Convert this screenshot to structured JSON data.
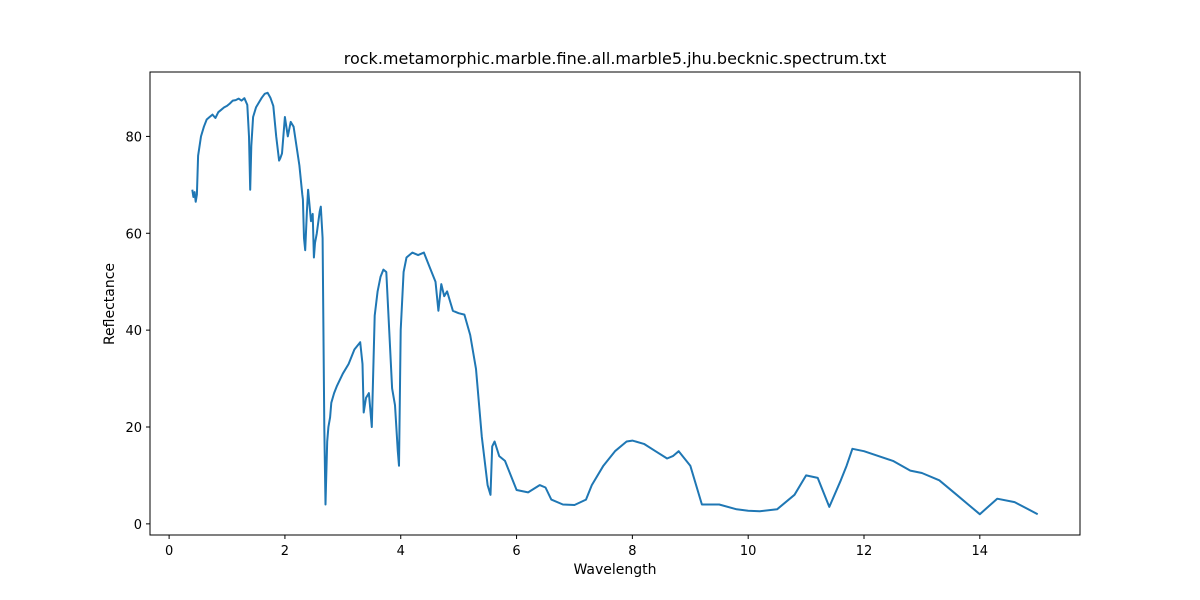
{
  "chart_data": {
    "type": "line",
    "title": "rock.metamorphic.marble.fine.all.marble5.jhu.becknic.spectrum.txt",
    "xlabel": "Wavelength",
    "ylabel": "Reflectance",
    "xlim": [
      -0.33,
      15.73
    ],
    "ylim": [
      -2.3,
      93.3
    ],
    "xticks": [
      0,
      2,
      4,
      6,
      8,
      10,
      12,
      14
    ],
    "yticks": [
      0,
      20,
      40,
      60,
      80
    ],
    "grid": false,
    "series": [
      {
        "color": "#1f77b4",
        "x": [
          0.4,
          0.42,
          0.44,
          0.46,
          0.48,
          0.5,
          0.55,
          0.6,
          0.65,
          0.7,
          0.75,
          0.8,
          0.85,
          0.9,
          0.95,
          1.0,
          1.05,
          1.1,
          1.15,
          1.2,
          1.25,
          1.3,
          1.35,
          1.38,
          1.4,
          1.42,
          1.45,
          1.5,
          1.55,
          1.6,
          1.65,
          1.7,
          1.75,
          1.8,
          1.85,
          1.9,
          1.92,
          1.95,
          2.0,
          2.05,
          2.1,
          2.15,
          2.2,
          2.25,
          2.3,
          2.31,
          2.33,
          2.35,
          2.38,
          2.4,
          2.45,
          2.48,
          2.5,
          2.52,
          2.55,
          2.6,
          2.62,
          2.65,
          2.68,
          2.7,
          2.71,
          2.73,
          2.75,
          2.78,
          2.8,
          2.85,
          2.9,
          3.0,
          3.1,
          3.2,
          3.3,
          3.34,
          3.36,
          3.4,
          3.45,
          3.5,
          3.55,
          3.6,
          3.65,
          3.7,
          3.75,
          3.8,
          3.85,
          3.9,
          3.95,
          3.97,
          4.0,
          4.05,
          4.1,
          4.2,
          4.3,
          4.4,
          4.5,
          4.6,
          4.65,
          4.7,
          4.75,
          4.8,
          4.85,
          4.9,
          5.0,
          5.1,
          5.2,
          5.3,
          5.4,
          5.5,
          5.55,
          5.58,
          5.62,
          5.7,
          5.8,
          6.0,
          6.2,
          6.4,
          6.5,
          6.6,
          6.8,
          7.0,
          7.2,
          7.3,
          7.5,
          7.7,
          7.9,
          8.0,
          8.2,
          8.4,
          8.6,
          8.7,
          8.8,
          9.0,
          9.2,
          9.5,
          9.8,
          10.0,
          10.2,
          10.5,
          10.8,
          11.0,
          11.2,
          11.4,
          11.6,
          11.7,
          11.8,
          12.0,
          12.5,
          12.8,
          13.0,
          13.3,
          13.6,
          13.8,
          14.0,
          14.3,
          14.6,
          15.0
        ],
        "y": [
          69,
          67.5,
          68.5,
          66.5,
          68,
          76,
          80,
          82,
          83.5,
          84,
          84.5,
          83.8,
          85,
          85.5,
          86,
          86.3,
          86.8,
          87.4,
          87.5,
          87.8,
          87.4,
          87.9,
          86.5,
          80,
          69,
          78,
          84,
          86,
          87,
          88,
          88.8,
          89,
          88,
          86.3,
          80,
          75,
          75.5,
          76.5,
          84,
          80,
          83,
          82,
          78,
          74,
          68,
          67,
          59,
          56.5,
          64.5,
          69,
          62.5,
          64,
          55,
          58,
          60,
          64.5,
          65.5,
          59,
          20,
          4,
          8,
          17,
          20,
          22,
          25,
          27,
          28.5,
          31,
          33,
          36,
          37.5,
          33,
          23,
          26,
          27,
          20,
          43,
          48,
          51,
          52.5,
          52,
          40,
          28,
          24.5,
          15,
          12,
          40,
          52,
          55,
          56,
          55.5,
          56,
          53,
          50,
          44,
          49.5,
          47,
          48,
          46,
          44,
          43.5,
          43.2,
          39,
          32,
          18,
          8,
          6,
          16,
          17,
          14,
          13,
          7,
          6.5,
          8,
          7.5,
          5,
          4,
          3.9,
          5,
          8,
          12,
          15,
          17,
          17.2,
          16.5,
          15,
          13.5,
          14,
          15,
          12,
          4,
          4,
          3,
          2.7,
          2.6,
          3,
          6,
          10,
          9.5,
          3.5,
          9,
          12,
          15.5,
          15,
          13,
          11,
          10.5,
          9,
          6,
          4,
          2,
          5.2,
          4.5,
          2
        ]
      }
    ]
  }
}
